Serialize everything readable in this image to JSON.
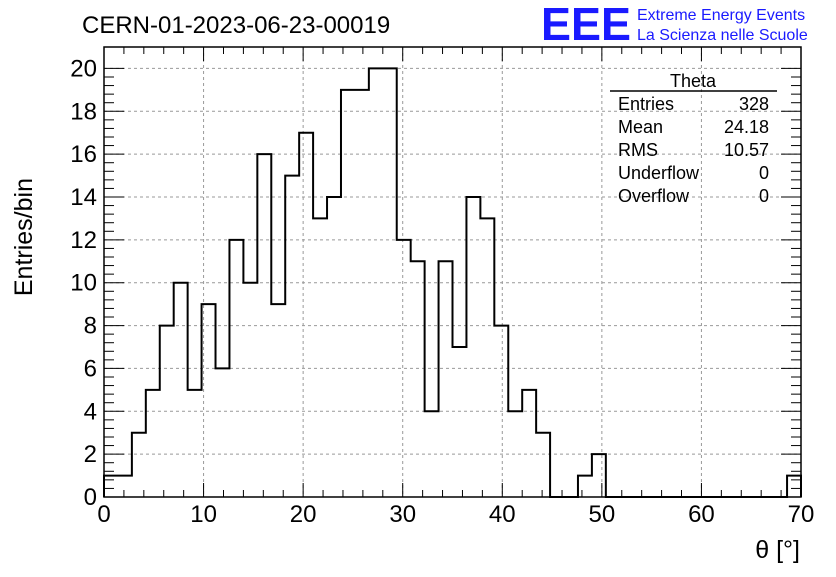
{
  "header": {
    "run_title": "CERN-01-2023-06-23-00019",
    "logo_text": "EEE",
    "logo_line1": "Extreme Energy Events",
    "logo_line2": "La Scienza nelle Scuole"
  },
  "stats_box": {
    "title": "Theta",
    "rows": [
      {
        "label": "Entries",
        "value": "328"
      },
      {
        "label": "Mean",
        "value": "24.18"
      },
      {
        "label": "RMS",
        "value": "10.57"
      },
      {
        "label": "Underflow",
        "value": "0"
      },
      {
        "label": "Overflow",
        "value": "0"
      }
    ]
  },
  "colors": {
    "logo": "#1a1aff",
    "line": "#000000",
    "grid": "#999999"
  },
  "chart_data": {
    "type": "bar",
    "style": "step-histogram",
    "xlabel": "θ [°]",
    "ylabel": "Entries/bin",
    "xlim": [
      0,
      70
    ],
    "ylim": [
      0,
      21
    ],
    "bin_width": 1.4,
    "x_ticks": [
      0,
      10,
      20,
      30,
      40,
      50,
      60,
      70
    ],
    "y_ticks": [
      0,
      2,
      4,
      6,
      8,
      10,
      12,
      14,
      16,
      18,
      20
    ],
    "grid": true,
    "values": [
      1,
      1,
      3,
      5,
      8,
      10,
      5,
      9,
      6,
      12,
      10,
      16,
      9,
      15,
      17,
      13,
      14,
      19,
      19,
      20,
      20,
      12,
      11,
      4,
      11,
      7,
      14,
      13,
      8,
      4,
      5,
      3,
      0,
      0,
      1,
      2,
      0,
      0,
      0,
      0,
      0,
      0,
      0,
      0,
      0,
      0,
      0,
      0,
      0,
      1
    ]
  }
}
